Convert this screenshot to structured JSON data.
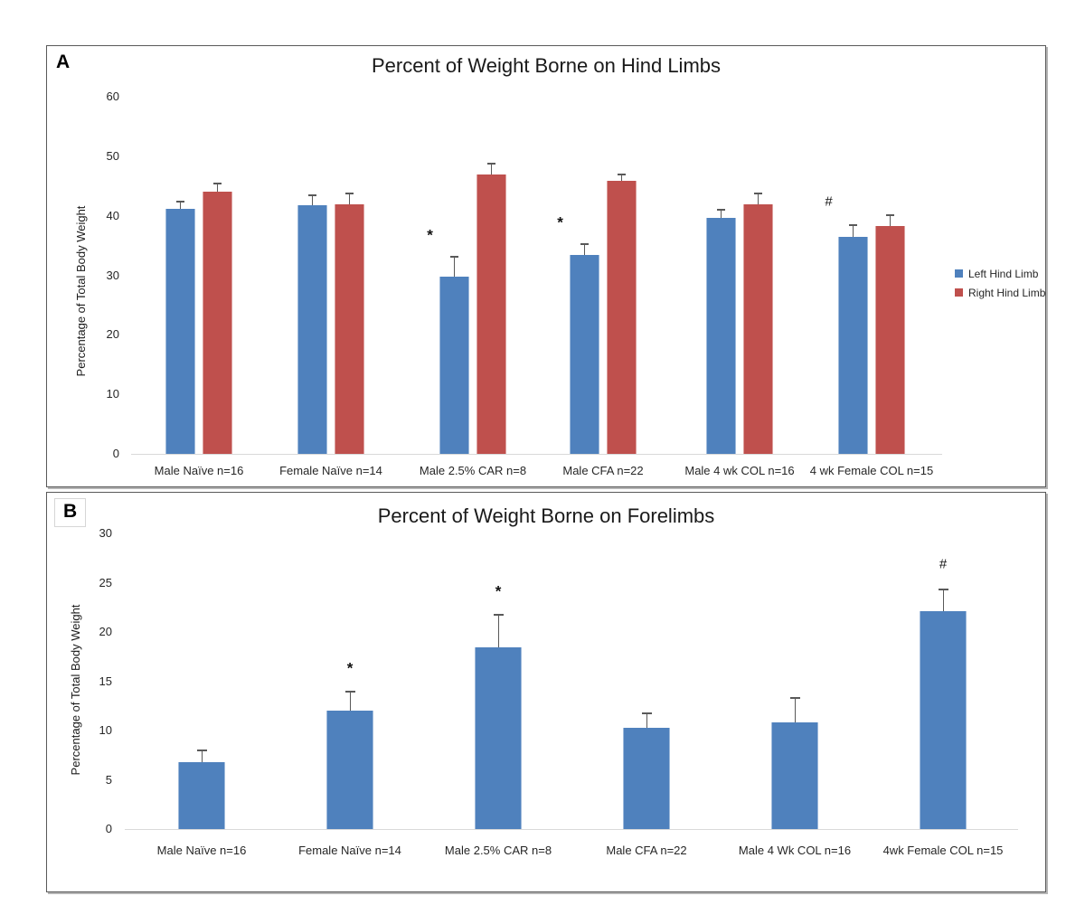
{
  "figure": {
    "panel_a_label": "A",
    "panel_b_label": "B"
  },
  "chart_data": [
    {
      "type": "bar",
      "title": "Percent of Weight Borne on Hind Limbs",
      "ylabel": "Percentage of Total Body Weight",
      "ylim": [
        0,
        60
      ],
      "yticks": [
        0,
        10,
        20,
        30,
        40,
        50,
        60
      ],
      "grid": false,
      "legend_position": "right",
      "categories": [
        "Male Naïve n=16",
        "Female Naïve n=14",
        "Male 2.5% CAR n=8",
        "Male CFA n=22",
        "Male 4 wk COL n=16",
        "4 wk Female COL n=15"
      ],
      "series": [
        {
          "name": "Left Hind Limb",
          "color": "#4F81BD",
          "values": [
            41.1,
            41.8,
            29.7,
            33.4,
            39.7,
            36.5
          ],
          "errors_up": [
            1.3,
            1.6,
            3.4,
            1.8,
            1.3,
            1.9
          ]
        },
        {
          "name": "Right Hind Limb",
          "color": "#BF504D",
          "values": [
            44.0,
            42.0,
            47.0,
            45.8,
            42.0,
            38.3
          ],
          "errors_up": [
            1.4,
            1.7,
            1.7,
            1.1,
            1.8,
            1.8
          ]
        }
      ],
      "annotations": [
        {
          "category_index": 2,
          "series_index": 0,
          "symbol": "*"
        },
        {
          "category_index": 3,
          "series_index": 0,
          "symbol": "*"
        },
        {
          "category_index": 5,
          "series_index": 0,
          "symbol": "#"
        }
      ]
    },
    {
      "type": "bar",
      "title": "Percent of Weight Borne on Forelimbs",
      "ylabel": "Percentage of Total Body Weight",
      "ylim": [
        0,
        30
      ],
      "yticks": [
        0,
        5,
        10,
        15,
        20,
        25,
        30
      ],
      "grid": false,
      "legend_position": "none",
      "categories": [
        "Male Naïve n=16",
        "Female Naïve n=14",
        "Male 2.5% CAR n=8",
        "Male CFA n=22",
        "Male 4 Wk COL n=16",
        "4wk Female COL n=15"
      ],
      "series": [
        {
          "color": "#4F81BD",
          "values": [
            6.8,
            12.0,
            18.4,
            10.3,
            10.8,
            22.1
          ],
          "errors_up": [
            1.2,
            1.9,
            3.3,
            1.4,
            2.5,
            2.2
          ]
        }
      ],
      "annotations": [
        {
          "category_index": 1,
          "series_index": 0,
          "symbol": "*"
        },
        {
          "category_index": 2,
          "series_index": 0,
          "symbol": "*"
        },
        {
          "category_index": 5,
          "series_index": 0,
          "symbol": "#"
        }
      ]
    }
  ]
}
